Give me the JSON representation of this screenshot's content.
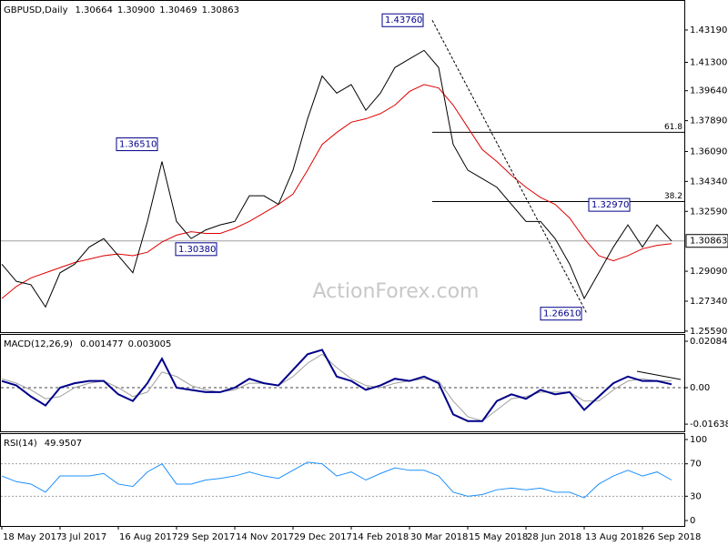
{
  "chart_data": [
    {
      "type": "line",
      "title": "GBPUSD,Daily",
      "title_values": [
        1.30664,
        1.309,
        1.30469,
        1.30863
      ],
      "title_value_labels": [
        "1.30664",
        "1.30900",
        "1.30469",
        "1.30863"
      ],
      "series": [
        {
          "color": "#000000",
          "values": [
            1.295,
            1.285,
            1.283,
            1.27,
            1.29,
            1.295,
            1.305,
            1.31,
            1.3,
            1.29,
            1.32,
            1.355,
            1.32,
            1.31,
            1.315,
            1.318,
            1.32,
            1.335,
            1.335,
            1.33,
            1.35,
            1.38,
            1.405,
            1.395,
            1.4,
            1.385,
            1.395,
            1.41,
            1.415,
            1.42,
            1.41,
            1.365,
            1.35,
            1.345,
            1.34,
            1.33,
            1.32,
            1.32,
            1.31,
            1.295,
            1.275,
            1.29,
            1.305,
            1.318,
            1.305,
            1.318,
            1.3086
          ]
        },
        {
          "color": "#e00000",
          "values": [
            1.275,
            1.282,
            1.287,
            1.29,
            1.293,
            1.296,
            1.298,
            1.3,
            1.301,
            1.3,
            1.302,
            1.308,
            1.312,
            1.314,
            1.313,
            1.313,
            1.316,
            1.32,
            1.325,
            1.33,
            1.336,
            1.35,
            1.365,
            1.372,
            1.378,
            1.38,
            1.383,
            1.388,
            1.396,
            1.4,
            1.398,
            1.388,
            1.375,
            1.362,
            1.355,
            1.347,
            1.34,
            1.334,
            1.33,
            1.322,
            1.31,
            1.3,
            1.297,
            1.3,
            1.304,
            1.306,
            1.307
          ]
        }
      ],
      "ylim": [
        1.2553,
        1.4489
      ],
      "yticks": [
        {
          "value": 1.4319,
          "label": "1.43190"
        },
        {
          "value": 1.413,
          "label": "1.41300"
        },
        {
          "value": 1.3964,
          "label": "1.39640"
        },
        {
          "value": 1.3789,
          "label": "1.37890"
        },
        {
          "value": 1.3609,
          "label": "1.36090"
        },
        {
          "value": 1.3434,
          "label": "1.34340"
        },
        {
          "value": 1.3259,
          "label": "1.32590"
        },
        {
          "value": 1.2909,
          "label": "1.29090"
        },
        {
          "value": 1.2734,
          "label": "1.27340"
        },
        {
          "value": 1.2559,
          "label": "1.25590"
        }
      ],
      "last_price": {
        "value": 1.30863,
        "label": "1.30863"
      },
      "annotations": [
        {
          "value": 1.4376,
          "label": "1.43760"
        },
        {
          "value": 1.3651,
          "label": "1.36510"
        },
        {
          "value": 1.3038,
          "label": "1.30380"
        },
        {
          "value": 1.3297,
          "label": "1.32970"
        },
        {
          "value": 1.2661,
          "label": "1.26610"
        }
      ],
      "levels": [
        {
          "value": 1.3721,
          "label": "61.8"
        },
        {
          "value": 1.3316,
          "label": "38.2"
        }
      ],
      "watermark": "ActionForex.com"
    },
    {
      "type": "line",
      "title": "MACD(12,26,9)",
      "title_values": [
        0.001477,
        0.003005
      ],
      "series": [
        {
          "color": "#00008b",
          "values": [
            0.003,
            0.001,
            -0.004,
            -0.008,
            0.0,
            0.002,
            0.003,
            0.003,
            -0.003,
            -0.006,
            0.002,
            0.013,
            0.0,
            -0.001,
            -0.002,
            -0.002,
            0.0,
            0.004,
            0.002,
            0.001,
            0.008,
            0.015,
            0.017,
            0.005,
            0.003,
            -0.001,
            0.001,
            0.004,
            0.003,
            0.005,
            0.002,
            -0.012,
            -0.015,
            -0.015,
            -0.006,
            -0.003,
            -0.005,
            -0.001,
            -0.003,
            -0.002,
            -0.01,
            -0.004,
            0.002,
            0.005,
            0.003,
            0.003,
            0.0015
          ]
        },
        {
          "color": "#a0a0a0",
          "values": [
            0.004,
            0.002,
            -0.001,
            -0.005,
            -0.004,
            0.0,
            0.002,
            0.003,
            0.0,
            -0.004,
            -0.002,
            0.007,
            0.005,
            0.001,
            -0.001,
            -0.002,
            -0.001,
            0.002,
            0.002,
            0.001,
            0.005,
            0.011,
            0.015,
            0.009,
            0.004,
            0.001,
            0.0,
            0.002,
            0.003,
            0.004,
            0.003,
            -0.006,
            -0.013,
            -0.015,
            -0.01,
            -0.005,
            -0.004,
            -0.002,
            -0.002,
            -0.002,
            -0.006,
            -0.006,
            -0.001,
            0.003,
            0.004,
            0.003,
            0.003
          ]
        }
      ],
      "ylim": [
        -0.01962,
        0.02371
      ],
      "yticks": [
        0.020848,
        {
          "value": 0,
          "label": "0.00"
        },
        -0.016389
      ]
    },
    {
      "type": "line",
      "title": "RSI(14)",
      "title_values": [
        49.9507
      ],
      "series": [
        {
          "color": "#1e90ff",
          "values": [
            55,
            48,
            45,
            35,
            55,
            55,
            55,
            58,
            45,
            42,
            60,
            70,
            45,
            45,
            50,
            52,
            55,
            60,
            55,
            52,
            62,
            72,
            70,
            55,
            60,
            50,
            58,
            65,
            62,
            62,
            55,
            35,
            30,
            32,
            38,
            40,
            38,
            40,
            35,
            35,
            28,
            45,
            55,
            62,
            55,
            60,
            50
          ]
        }
      ],
      "ylim": [
        -6.7,
        106.7
      ],
      "yticks": [
        100,
        70,
        30,
        0
      ],
      "levels": [
        70,
        30
      ],
      "xticks": [
        {
          "value": 0,
          "label": "18 May 2017"
        },
        {
          "value": 4,
          "label": "3 Jul 2017"
        },
        {
          "value": 8,
          "label": "16 Aug 2017"
        },
        {
          "value": 12,
          "label": "29 Sep 2017"
        },
        {
          "value": 16,
          "label": "14 Nov 2017"
        },
        {
          "value": 20,
          "label": "29 Dec 2017"
        },
        {
          "value": 24,
          "label": "14 Feb 2018"
        },
        {
          "value": 28,
          "label": "30 Mar 2018"
        },
        {
          "value": 32,
          "label": "15 May 2018"
        },
        {
          "value": 36,
          "label": "28 Jun 2018"
        },
        {
          "value": 40,
          "label": "13 Aug 2018"
        },
        {
          "value": 44,
          "label": "26 Sep 2018"
        }
      ]
    }
  ]
}
